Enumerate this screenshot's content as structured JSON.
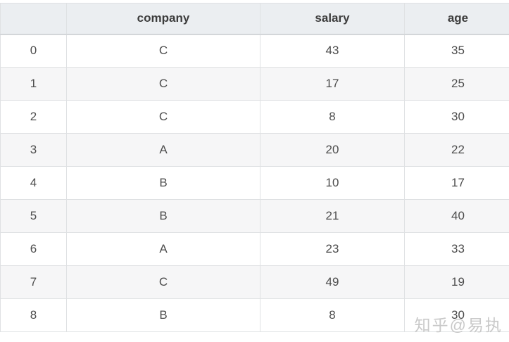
{
  "chart_data": {
    "type": "table",
    "columns": [
      "",
      "company",
      "salary",
      "age"
    ],
    "rows": [
      [
        "0",
        "C",
        "43",
        "35"
      ],
      [
        "1",
        "C",
        "17",
        "25"
      ],
      [
        "2",
        "C",
        "8",
        "30"
      ],
      [
        "3",
        "A",
        "20",
        "22"
      ],
      [
        "4",
        "B",
        "10",
        "17"
      ],
      [
        "5",
        "B",
        "21",
        "40"
      ],
      [
        "6",
        "A",
        "23",
        "33"
      ],
      [
        "7",
        "C",
        "49",
        "19"
      ],
      [
        "8",
        "B",
        "8",
        "30"
      ]
    ]
  },
  "watermark": {
    "text": "知乎@易执"
  },
  "colors": {
    "header_bg": "#ebeef1",
    "stripe_bg": "#f6f6f7",
    "border": "#dfe1e3",
    "header_border_bottom": "#d3d6d9",
    "text": "#4d4d4d",
    "header_text": "#3d3d3d",
    "watermark": "#c9c9c9"
  }
}
